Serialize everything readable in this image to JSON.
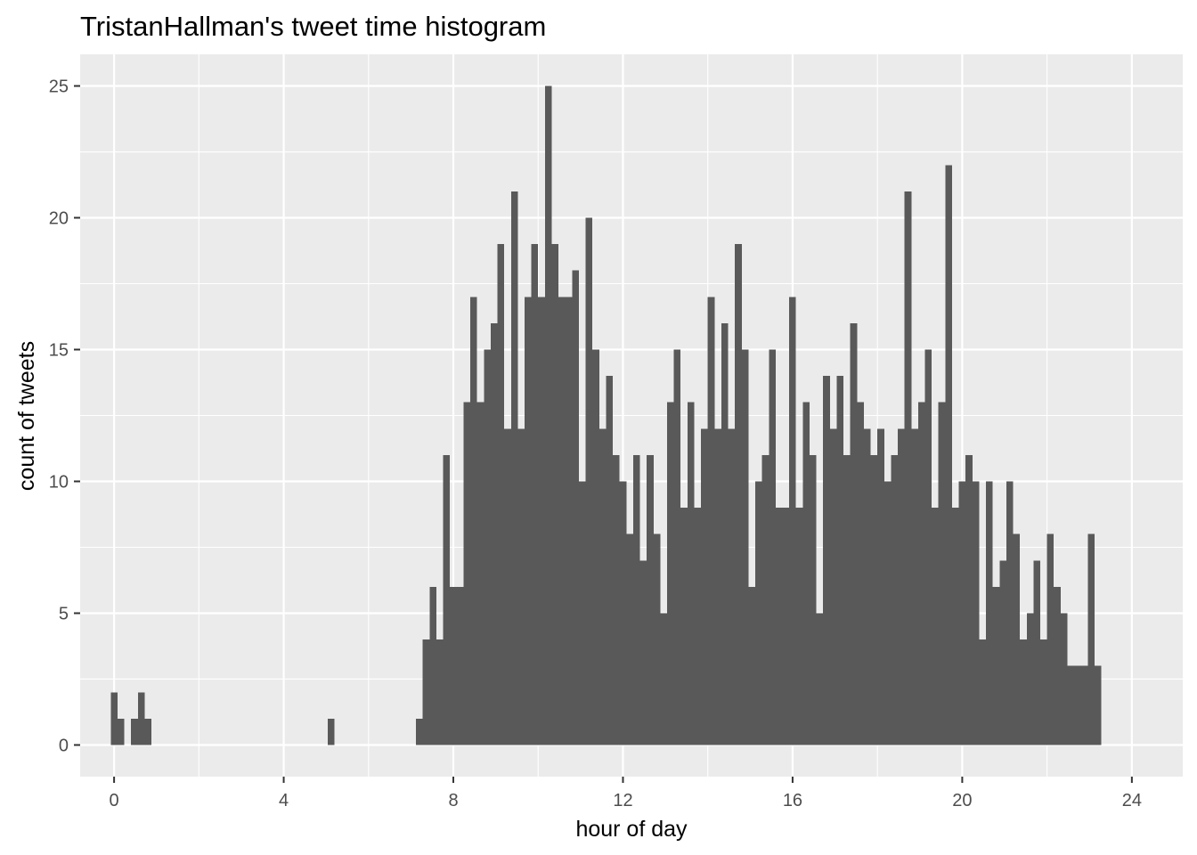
{
  "chart_data": {
    "type": "bar",
    "title": "TristanHallman's tweet time histogram",
    "xlabel": "hour of day",
    "ylabel": "count of tweets",
    "xlim": [
      -0.8,
      25.2
    ],
    "ylim": [
      -1.2,
      26.2
    ],
    "xticks": [
      0,
      4,
      8,
      12,
      16,
      20,
      24
    ],
    "yticks": [
      0,
      5,
      10,
      15,
      20,
      25
    ],
    "grid": true,
    "bin_width": 0.16,
    "bins": [
      {
        "x": 0.0,
        "count": 2
      },
      {
        "x": 0.16,
        "count": 1
      },
      {
        "x": 0.48,
        "count": 1
      },
      {
        "x": 0.64,
        "count": 2
      },
      {
        "x": 0.8,
        "count": 1
      },
      {
        "x": 5.12,
        "count": 1
      },
      {
        "x": 7.2,
        "count": 1
      },
      {
        "x": 7.36,
        "count": 4
      },
      {
        "x": 7.52,
        "count": 6
      },
      {
        "x": 7.68,
        "count": 4
      },
      {
        "x": 7.84,
        "count": 11
      },
      {
        "x": 8.0,
        "count": 6
      },
      {
        "x": 8.16,
        "count": 6
      },
      {
        "x": 8.32,
        "count": 13
      },
      {
        "x": 8.48,
        "count": 17
      },
      {
        "x": 8.64,
        "count": 13
      },
      {
        "x": 8.8,
        "count": 15
      },
      {
        "x": 8.96,
        "count": 16
      },
      {
        "x": 9.12,
        "count": 19
      },
      {
        "x": 9.28,
        "count": 12
      },
      {
        "x": 9.44,
        "count": 21
      },
      {
        "x": 9.6,
        "count": 12
      },
      {
        "x": 9.76,
        "count": 17
      },
      {
        "x": 9.92,
        "count": 19
      },
      {
        "x": 10.08,
        "count": 17
      },
      {
        "x": 10.24,
        "count": 25
      },
      {
        "x": 10.4,
        "count": 19
      },
      {
        "x": 10.56,
        "count": 17
      },
      {
        "x": 10.72,
        "count": 17
      },
      {
        "x": 10.88,
        "count": 18
      },
      {
        "x": 11.04,
        "count": 10
      },
      {
        "x": 11.2,
        "count": 20
      },
      {
        "x": 11.36,
        "count": 15
      },
      {
        "x": 11.52,
        "count": 12
      },
      {
        "x": 11.68,
        "count": 14
      },
      {
        "x": 11.84,
        "count": 11
      },
      {
        "x": 12.0,
        "count": 10
      },
      {
        "x": 12.16,
        "count": 8
      },
      {
        "x": 12.32,
        "count": 11
      },
      {
        "x": 12.48,
        "count": 7
      },
      {
        "x": 12.64,
        "count": 11
      },
      {
        "x": 12.8,
        "count": 8
      },
      {
        "x": 12.96,
        "count": 5
      },
      {
        "x": 13.12,
        "count": 13
      },
      {
        "x": 13.28,
        "count": 15
      },
      {
        "x": 13.44,
        "count": 9
      },
      {
        "x": 13.6,
        "count": 13
      },
      {
        "x": 13.76,
        "count": 9
      },
      {
        "x": 13.92,
        "count": 12
      },
      {
        "x": 14.08,
        "count": 17
      },
      {
        "x": 14.24,
        "count": 12
      },
      {
        "x": 14.4,
        "count": 16
      },
      {
        "x": 14.56,
        "count": 12
      },
      {
        "x": 14.72,
        "count": 19
      },
      {
        "x": 14.88,
        "count": 15
      },
      {
        "x": 15.04,
        "count": 6
      },
      {
        "x": 15.2,
        "count": 10
      },
      {
        "x": 15.36,
        "count": 11
      },
      {
        "x": 15.52,
        "count": 15
      },
      {
        "x": 15.68,
        "count": 9
      },
      {
        "x": 15.84,
        "count": 9
      },
      {
        "x": 16.0,
        "count": 17
      },
      {
        "x": 16.16,
        "count": 9
      },
      {
        "x": 16.32,
        "count": 13
      },
      {
        "x": 16.48,
        "count": 11
      },
      {
        "x": 16.64,
        "count": 5
      },
      {
        "x": 16.8,
        "count": 14
      },
      {
        "x": 16.96,
        "count": 12
      },
      {
        "x": 17.12,
        "count": 14
      },
      {
        "x": 17.28,
        "count": 11
      },
      {
        "x": 17.44,
        "count": 16
      },
      {
        "x": 17.6,
        "count": 13
      },
      {
        "x": 17.76,
        "count": 12
      },
      {
        "x": 17.92,
        "count": 11
      },
      {
        "x": 18.08,
        "count": 12
      },
      {
        "x": 18.24,
        "count": 10
      },
      {
        "x": 18.4,
        "count": 11
      },
      {
        "x": 18.56,
        "count": 12
      },
      {
        "x": 18.72,
        "count": 21
      },
      {
        "x": 18.88,
        "count": 12
      },
      {
        "x": 19.04,
        "count": 13
      },
      {
        "x": 19.2,
        "count": 15
      },
      {
        "x": 19.36,
        "count": 9
      },
      {
        "x": 19.52,
        "count": 13
      },
      {
        "x": 19.68,
        "count": 22
      },
      {
        "x": 19.84,
        "count": 9
      },
      {
        "x": 20.0,
        "count": 10
      },
      {
        "x": 20.16,
        "count": 11
      },
      {
        "x": 20.32,
        "count": 10
      },
      {
        "x": 20.48,
        "count": 4
      },
      {
        "x": 20.64,
        "count": 10
      },
      {
        "x": 20.8,
        "count": 6
      },
      {
        "x": 20.96,
        "count": 7
      },
      {
        "x": 21.12,
        "count": 10
      },
      {
        "x": 21.28,
        "count": 8
      },
      {
        "x": 21.44,
        "count": 4
      },
      {
        "x": 21.6,
        "count": 5
      },
      {
        "x": 21.76,
        "count": 7
      },
      {
        "x": 21.92,
        "count": 4
      },
      {
        "x": 22.08,
        "count": 8
      },
      {
        "x": 22.24,
        "count": 6
      },
      {
        "x": 22.4,
        "count": 5
      },
      {
        "x": 22.56,
        "count": 3
      },
      {
        "x": 22.72,
        "count": 3
      },
      {
        "x": 22.88,
        "count": 3
      },
      {
        "x": 23.04,
        "count": 8
      },
      {
        "x": 23.2,
        "count": 3
      }
    ],
    "colors": {
      "bar": "#595959",
      "panel": "#ebebeb",
      "grid": "#ffffff",
      "tick_label": "#4d4d4d",
      "tick": "#333333"
    }
  }
}
